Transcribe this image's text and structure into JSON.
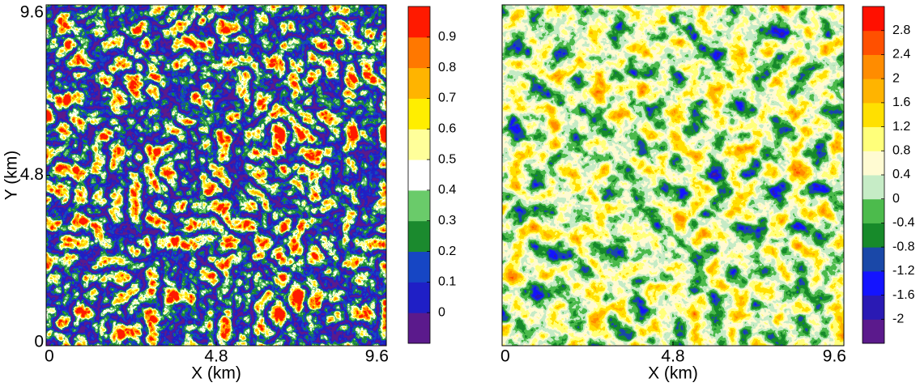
{
  "chart_data": [
    {
      "type": "contour",
      "xlabel": "X (km)",
      "ylabel": "Y (km)",
      "xlim": [
        0,
        9.6
      ],
      "ylim": [
        0,
        9.6
      ],
      "xticks": [
        0,
        4.8,
        9.6
      ],
      "yticks": [
        0,
        4.8,
        9.6
      ],
      "clim": [
        -0.1,
        1.0
      ],
      "cticks": [
        0,
        0.1,
        0.2,
        0.3,
        0.4,
        0.5,
        0.6,
        0.7,
        0.8,
        0.9
      ],
      "colors": [
        "#5b1a8c",
        "#1f1fc6",
        "#1646c4",
        "#1b8a2e",
        "#6acb6a",
        "#ffffff",
        "#ffff9a",
        "#ffee00",
        "#ffb400",
        "#ff7800",
        "#ff1a00"
      ]
    },
    {
      "type": "contour",
      "xlabel": "X (km)",
      "xlim": [
        0,
        9.6
      ],
      "xticks": [
        0,
        4.8,
        9.6
      ],
      "clim": [
        -2.4,
        3.2
      ],
      "cticks": [
        -2,
        -1.6,
        -1.2,
        -0.8,
        -0.4,
        0,
        0.4,
        0.8,
        1.2,
        1.6,
        2,
        2.4,
        2.8
      ],
      "colors": [
        "#5b1a8c",
        "#2a1ab4",
        "#1414ff",
        "#1a48a8",
        "#178a2a",
        "#4cbb4c",
        "#c6ecc6",
        "#fffbd2",
        "#ffff7a",
        "#ffe000",
        "#ffb400",
        "#ff8c00",
        "#ff5000",
        "#ff1000"
      ]
    }
  ]
}
